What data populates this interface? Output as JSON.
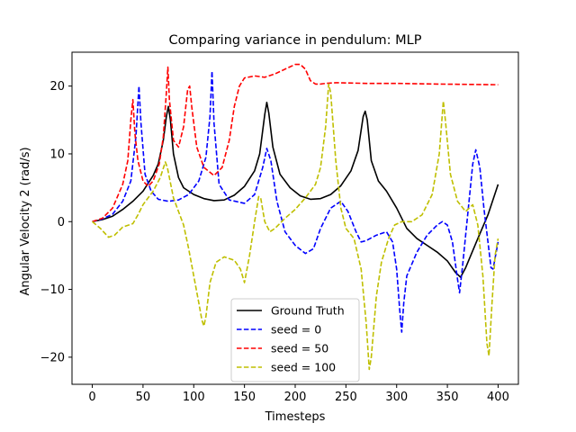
{
  "chart_data": {
    "type": "line",
    "title": "Comparing variance in pendulum: MLP",
    "xlabel": "Timesteps",
    "ylabel": "Angular Velocity 2 (rad/s)",
    "xlim": [
      -20,
      420
    ],
    "ylim": [
      -24,
      25
    ],
    "xticks": [
      0,
      50,
      100,
      150,
      200,
      250,
      300,
      350,
      400
    ],
    "yticks": [
      -20,
      -10,
      0,
      10,
      20
    ],
    "grid": false,
    "legend_position": "lower center",
    "series": [
      {
        "name": "Ground Truth",
        "color": "#000000",
        "dash": "solid",
        "points": [
          [
            0,
            0
          ],
          [
            10,
            0.3
          ],
          [
            20,
            0.8
          ],
          [
            30,
            1.8
          ],
          [
            40,
            3
          ],
          [
            50,
            4.5
          ],
          [
            60,
            6.8
          ],
          [
            65,
            8.5
          ],
          [
            70,
            12
          ],
          [
            73,
            15.5
          ],
          [
            75,
            17
          ],
          [
            77,
            15
          ],
          [
            80,
            10
          ],
          [
            85,
            6.5
          ],
          [
            90,
            5
          ],
          [
            100,
            4
          ],
          [
            110,
            3.4
          ],
          [
            120,
            3.1
          ],
          [
            130,
            3.2
          ],
          [
            140,
            3.9
          ],
          [
            150,
            5.2
          ],
          [
            160,
            7.5
          ],
          [
            165,
            10
          ],
          [
            170,
            15.8
          ],
          [
            172,
            17.6
          ],
          [
            174,
            16
          ],
          [
            178,
            11
          ],
          [
            185,
            7
          ],
          [
            195,
            5
          ],
          [
            205,
            3.8
          ],
          [
            215,
            3.3
          ],
          [
            225,
            3.4
          ],
          [
            235,
            4
          ],
          [
            245,
            5.3
          ],
          [
            255,
            7.5
          ],
          [
            262,
            10.5
          ],
          [
            267,
            15.5
          ],
          [
            269,
            16.3
          ],
          [
            271,
            15
          ],
          [
            275,
            9
          ],
          [
            282,
            6
          ],
          [
            290,
            4.5
          ],
          [
            300,
            2
          ],
          [
            310,
            -1
          ],
          [
            320,
            -2.5
          ],
          [
            330,
            -3.5
          ],
          [
            340,
            -4.5
          ],
          [
            350,
            -5.8
          ],
          [
            358,
            -7.5
          ],
          [
            363,
            -8.2
          ],
          [
            368,
            -6.8
          ],
          [
            380,
            -2.5
          ],
          [
            390,
            1
          ],
          [
            400,
            5.5
          ]
        ]
      },
      {
        "name": "seed = 0",
        "color": "#0000ff",
        "dash": "dashed",
        "points": [
          [
            0,
            0
          ],
          [
            10,
            0.4
          ],
          [
            20,
            1.1
          ],
          [
            30,
            3
          ],
          [
            38,
            6
          ],
          [
            43,
            12.5
          ],
          [
            46,
            20
          ],
          [
            48,
            14.5
          ],
          [
            52,
            7
          ],
          [
            58,
            4.5
          ],
          [
            65,
            3.3
          ],
          [
            75,
            3
          ],
          [
            85,
            3.2
          ],
          [
            95,
            4
          ],
          [
            105,
            6
          ],
          [
            112,
            9.5
          ],
          [
            116,
            15.5
          ],
          [
            118,
            22.2
          ],
          [
            120,
            14.5
          ],
          [
            125,
            5.5
          ],
          [
            135,
            3.2
          ],
          [
            150,
            2.7
          ],
          [
            160,
            4
          ],
          [
            168,
            8
          ],
          [
            172,
            10.8
          ],
          [
            176,
            9
          ],
          [
            182,
            3
          ],
          [
            190,
            -1.5
          ],
          [
            200,
            -3.5
          ],
          [
            210,
            -4.7
          ],
          [
            218,
            -4
          ],
          [
            225,
            -1
          ],
          [
            235,
            2
          ],
          [
            245,
            3
          ],
          [
            252,
            1.5
          ],
          [
            260,
            -1.5
          ],
          [
            265,
            -3
          ],
          [
            270,
            -2.8
          ],
          [
            280,
            -2
          ],
          [
            290,
            -1.5
          ],
          [
            296,
            -3
          ],
          [
            300,
            -7
          ],
          [
            303,
            -13
          ],
          [
            305,
            -16.3
          ],
          [
            307,
            -12
          ],
          [
            310,
            -8
          ],
          [
            320,
            -4.5
          ],
          [
            330,
            -2
          ],
          [
            340,
            -0.5
          ],
          [
            345,
            0
          ],
          [
            350,
            -0.5
          ],
          [
            355,
            -3
          ],
          [
            360,
            -8.5
          ],
          [
            362,
            -10.5
          ],
          [
            365,
            -6.5
          ],
          [
            370,
            1
          ],
          [
            375,
            8.5
          ],
          [
            378,
            10.6
          ],
          [
            382,
            8
          ],
          [
            386,
            2
          ],
          [
            390,
            -3
          ],
          [
            393,
            -6.8
          ],
          [
            395,
            -7
          ],
          [
            400,
            -3
          ]
        ]
      },
      {
        "name": "seed = 50",
        "color": "#ff0000",
        "dash": "dashed",
        "points": [
          [
            0,
            0
          ],
          [
            10,
            0.5
          ],
          [
            20,
            2
          ],
          [
            30,
            5.5
          ],
          [
            35,
            9
          ],
          [
            38,
            15
          ],
          [
            40,
            18
          ],
          [
            42,
            13
          ],
          [
            45,
            9
          ],
          [
            50,
            6
          ],
          [
            55,
            5.2
          ],
          [
            60,
            6
          ],
          [
            66,
            8.5
          ],
          [
            70,
            12.5
          ],
          [
            73,
            19
          ],
          [
            74.5,
            22.8
          ],
          [
            76,
            18
          ],
          [
            80,
            12
          ],
          [
            85,
            11
          ],
          [
            90,
            14
          ],
          [
            94,
            19.5
          ],
          [
            96,
            20
          ],
          [
            98,
            17
          ],
          [
            103,
            11
          ],
          [
            110,
            8
          ],
          [
            120,
            6.8
          ],
          [
            128,
            8
          ],
          [
            135,
            12
          ],
          [
            140,
            17
          ],
          [
            145,
            20
          ],
          [
            150,
            21.2
          ],
          [
            160,
            21.5
          ],
          [
            170,
            21.3
          ],
          [
            180,
            21.8
          ],
          [
            190,
            22.5
          ],
          [
            200,
            23.2
          ],
          [
            205,
            23.2
          ],
          [
            210,
            22.5
          ],
          [
            215,
            20.8
          ],
          [
            220,
            20.3
          ],
          [
            225,
            20.3
          ],
          [
            230,
            20.4
          ],
          [
            240,
            20.5
          ],
          [
            270,
            20.4
          ],
          [
            300,
            20.4
          ],
          [
            340,
            20.3
          ],
          [
            400,
            20.2
          ]
        ]
      },
      {
        "name": "seed = 100",
        "color": "#bfbf00",
        "dash": "dashed",
        "points": [
          [
            0,
            0
          ],
          [
            8,
            -1
          ],
          [
            16,
            -2.3
          ],
          [
            22,
            -2
          ],
          [
            30,
            -0.8
          ],
          [
            40,
            -0.3
          ],
          [
            45,
            1
          ],
          [
            50,
            2.5
          ],
          [
            60,
            4.5
          ],
          [
            67,
            6.5
          ],
          [
            72,
            8.8
          ],
          [
            74,
            8
          ],
          [
            80,
            3.5
          ],
          [
            90,
            -0.5
          ],
          [
            95,
            -4
          ],
          [
            100,
            -8
          ],
          [
            105,
            -12
          ],
          [
            108,
            -14.5
          ],
          [
            110,
            -15.4
          ],
          [
            112,
            -14
          ],
          [
            116,
            -9
          ],
          [
            122,
            -6
          ],
          [
            130,
            -5.2
          ],
          [
            140,
            -5.7
          ],
          [
            146,
            -7
          ],
          [
            150,
            -9
          ],
          [
            155,
            -5
          ],
          [
            160,
            0
          ],
          [
            164,
            3.7
          ],
          [
            166,
            3.5
          ],
          [
            170,
            0
          ],
          [
            175,
            -1.5
          ],
          [
            180,
            -1
          ],
          [
            190,
            0.5
          ],
          [
            200,
            1.8
          ],
          [
            210,
            3.5
          ],
          [
            220,
            5.5
          ],
          [
            225,
            8
          ],
          [
            230,
            14
          ],
          [
            233,
            20.3
          ],
          [
            235,
            19
          ],
          [
            240,
            9
          ],
          [
            245,
            2
          ],
          [
            250,
            -1
          ],
          [
            258,
            -2.5
          ],
          [
            265,
            -7
          ],
          [
            270,
            -15
          ],
          [
            273,
            -21.8
          ],
          [
            275,
            -20
          ],
          [
            280,
            -11
          ],
          [
            285,
            -6
          ],
          [
            292,
            -2.5
          ],
          [
            298,
            -0.5
          ],
          [
            305,
            0
          ],
          [
            315,
            0
          ],
          [
            325,
            1
          ],
          [
            335,
            4
          ],
          [
            342,
            10
          ],
          [
            346,
            17.8
          ],
          [
            348,
            15
          ],
          [
            353,
            7
          ],
          [
            360,
            3
          ],
          [
            368,
            1.5
          ],
          [
            375,
            2.5
          ],
          [
            380,
            -0.5
          ],
          [
            385,
            -8
          ],
          [
            389,
            -18
          ],
          [
            391,
            -19.8
          ],
          [
            394,
            -12
          ],
          [
            397,
            -5
          ],
          [
            400,
            -2.5
          ]
        ]
      }
    ]
  }
}
